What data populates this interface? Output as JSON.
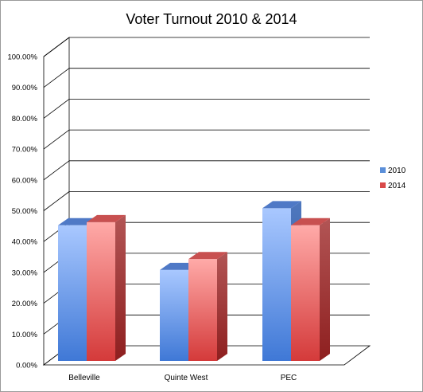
{
  "chart_data": {
    "type": "bar",
    "title": "Voter Turnout 2010 & 2014",
    "categories": [
      "Belleville",
      "Quinte West",
      "PEC"
    ],
    "series": [
      {
        "name": "2010",
        "values": [
          0.44,
          0.295,
          0.495
        ],
        "color": "#5b8fd9"
      },
      {
        "name": "2014",
        "values": [
          0.45,
          0.33,
          0.44
        ],
        "color": "#d94a4a"
      }
    ],
    "ylim": [
      0,
      1
    ],
    "yticks": [
      "0.00%",
      "10.00%",
      "20.00%",
      "30.00%",
      "40.00%",
      "50.00%",
      "60.00%",
      "70.00%",
      "80.00%",
      "90.00%",
      "100.00%"
    ],
    "xlabel": "",
    "ylabel": "",
    "grid": true,
    "legend_position": "right",
    "style": "3d-clustered-column"
  }
}
